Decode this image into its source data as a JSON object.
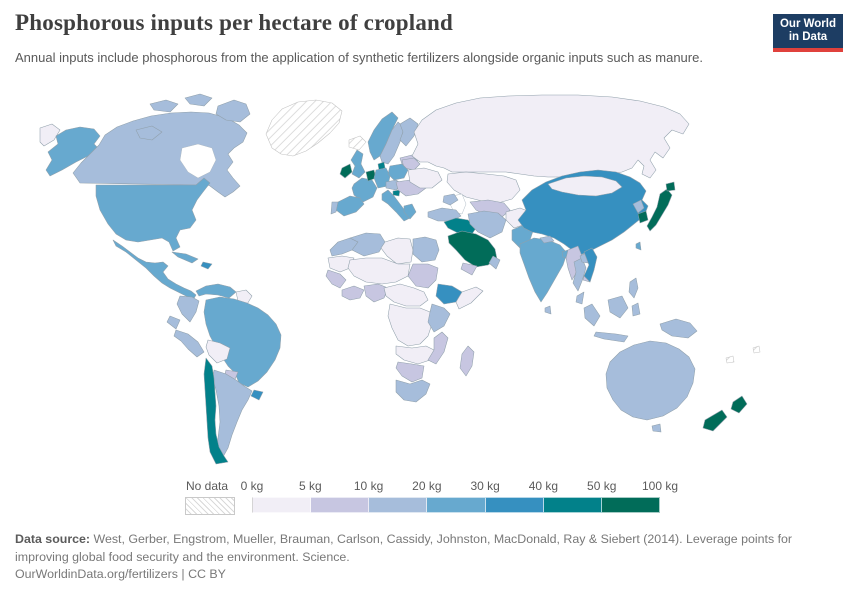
{
  "header": {
    "title": "Phosphorous inputs per hectare of cropland",
    "subtitle": "Annual inputs include phosphorous from the application of synthetic fertilizers alongside organic inputs such as manure.",
    "logo": {
      "line1": "Our World",
      "line2": "in Data",
      "bg_color": "#1d3d63",
      "accent_color": "#e0413c",
      "text_color": "#ffffff"
    }
  },
  "legend": {
    "no_data_label": "No data",
    "tick_labels": [
      "0 kg",
      "5 kg",
      "10 kg",
      "20 kg",
      "30 kg",
      "40 kg",
      "50 kg",
      "100 kg"
    ]
  },
  "footer": {
    "source_label": "Data source:",
    "source_text": " West, Gerber, Engstrom, Mueller, Brauman, Carlson, Cassidy, Johnston, MacDonald, Ray & Siebert (2014). Leverage points for improving global food security and the environment. Science.",
    "link_text": "OurWorldinData.org/fertilizers",
    "separator": " | ",
    "license_text": "CC BY"
  },
  "chart_data": {
    "type": "choropleth_world_map",
    "title": "Phosphorous inputs per hectare of cropland",
    "unit": "kg of phosphorous inputs per hectare of cropland per year",
    "legend_position": "bottom",
    "bins": [
      {
        "range": "0-5 kg",
        "color": "#f1eef6"
      },
      {
        "range": "5-10 kg",
        "color": "#c7c6e1"
      },
      {
        "range": "10-20 kg",
        "color": "#a6bddb"
      },
      {
        "range": "20-30 kg",
        "color": "#67a9cf"
      },
      {
        "range": "30-40 kg",
        "color": "#3690c0"
      },
      {
        "range": "40-50 kg",
        "color": "#02818a"
      },
      {
        "range": "50-100 kg",
        "color": "#016c59"
      },
      {
        "range": "No data",
        "color": "hatch"
      }
    ],
    "regions": [
      {
        "name": "Canada",
        "bin": "10-20 kg"
      },
      {
        "name": "United States",
        "bin": "20-30 kg"
      },
      {
        "name": "Greenland",
        "bin": "No data"
      },
      {
        "name": "Iceland",
        "bin": "No data"
      },
      {
        "name": "Mexico and Central America",
        "bin": "20-30 kg"
      },
      {
        "name": "Cuba",
        "bin": "20-30 kg"
      },
      {
        "name": "Hispaniola",
        "bin": "30-40 kg"
      },
      {
        "name": "Venezuela",
        "bin": "20-30 kg"
      },
      {
        "name": "Guyana and Suriname",
        "bin": "0-5 kg"
      },
      {
        "name": "Colombia",
        "bin": "10-20 kg"
      },
      {
        "name": "Ecuador",
        "bin": "10-20 kg"
      },
      {
        "name": "Peru",
        "bin": "10-20 kg"
      },
      {
        "name": "Brazil",
        "bin": "20-30 kg"
      },
      {
        "name": "Bolivia",
        "bin": "0-5 kg"
      },
      {
        "name": "Paraguay",
        "bin": "5-10 kg"
      },
      {
        "name": "Uruguay",
        "bin": "30-40 kg"
      },
      {
        "name": "Argentina",
        "bin": "10-20 kg"
      },
      {
        "name": "Chile",
        "bin": "40-50 kg"
      },
      {
        "name": "Norway",
        "bin": "20-30 kg"
      },
      {
        "name": "Sweden",
        "bin": "10-20 kg"
      },
      {
        "name": "Finland",
        "bin": "10-20 kg"
      },
      {
        "name": "Denmark",
        "bin": "40-50 kg"
      },
      {
        "name": "United Kingdom",
        "bin": "20-30 kg"
      },
      {
        "name": "Ireland",
        "bin": "50-100 kg"
      },
      {
        "name": "France",
        "bin": "20-30 kg"
      },
      {
        "name": "Belgium and Netherlands",
        "bin": "50-100 kg"
      },
      {
        "name": "Germany",
        "bin": "20-30 kg"
      },
      {
        "name": "Poland",
        "bin": "20-30 kg"
      },
      {
        "name": "Czechia and Austria",
        "bin": "10-20 kg"
      },
      {
        "name": "Spain",
        "bin": "20-30 kg"
      },
      {
        "name": "Portugal",
        "bin": "10-20 kg"
      },
      {
        "name": "Italy",
        "bin": "20-30 kg"
      },
      {
        "name": "Slovenia and Croatia",
        "bin": "40-50 kg"
      },
      {
        "name": "Romania and Balkans",
        "bin": "5-10 kg"
      },
      {
        "name": "Greece",
        "bin": "20-30 kg"
      },
      {
        "name": "Ukraine",
        "bin": "0-5 kg"
      },
      {
        "name": "Belarus and Baltics",
        "bin": "5-10 kg"
      },
      {
        "name": "Russia",
        "bin": "0-5 kg"
      },
      {
        "name": "Kazakhstan",
        "bin": "0-5 kg"
      },
      {
        "name": "Uzbekistan and Turkmenistan",
        "bin": "5-10 kg"
      },
      {
        "name": "Caucasus",
        "bin": "10-20 kg"
      },
      {
        "name": "Turkey",
        "bin": "10-20 kg"
      },
      {
        "name": "Syria and Iraq",
        "bin": "40-50 kg"
      },
      {
        "name": "Saudi Arabia",
        "bin": "50-100 kg"
      },
      {
        "name": "Yemen",
        "bin": "5-10 kg"
      },
      {
        "name": "Oman",
        "bin": "10-20 kg"
      },
      {
        "name": "Iran",
        "bin": "10-20 kg"
      },
      {
        "name": "Afghanistan",
        "bin": "0-5 kg"
      },
      {
        "name": "Pakistan",
        "bin": "20-30 kg"
      },
      {
        "name": "India",
        "bin": "20-30 kg"
      },
      {
        "name": "Sri Lanka",
        "bin": "10-20 kg"
      },
      {
        "name": "Nepal",
        "bin": "10-20 kg"
      },
      {
        "name": "Bangladesh",
        "bin": "20-30 kg"
      },
      {
        "name": "Myanmar",
        "bin": "5-10 kg"
      },
      {
        "name": "China",
        "bin": "30-40 kg"
      },
      {
        "name": "Mongolia",
        "bin": "0-5 kg"
      },
      {
        "name": "Taiwan",
        "bin": "20-30 kg"
      },
      {
        "name": "North Korea",
        "bin": "10-20 kg"
      },
      {
        "name": "South Korea",
        "bin": "50-100 kg"
      },
      {
        "name": "Japan",
        "bin": "50-100 kg"
      },
      {
        "name": "Vietnam",
        "bin": "30-40 kg"
      },
      {
        "name": "Laos",
        "bin": "10-20 kg"
      },
      {
        "name": "Thailand",
        "bin": "10-20 kg"
      },
      {
        "name": "Cambodia",
        "bin": "5-10 kg"
      },
      {
        "name": "Malaysia",
        "bin": "10-20 kg"
      },
      {
        "name": "Philippines",
        "bin": "10-20 kg"
      },
      {
        "name": "Indonesia",
        "bin": "10-20 kg"
      },
      {
        "name": "Papua New Guinea",
        "bin": "10-20 kg"
      },
      {
        "name": "Australia",
        "bin": "10-20 kg"
      },
      {
        "name": "New Zealand",
        "bin": "50-100 kg"
      },
      {
        "name": "Pacific islands",
        "bin": "No data"
      },
      {
        "name": "Morocco",
        "bin": "10-20 kg"
      },
      {
        "name": "Algeria",
        "bin": "10-20 kg"
      },
      {
        "name": "Libya",
        "bin": "0-5 kg"
      },
      {
        "name": "Egypt",
        "bin": "10-20 kg"
      },
      {
        "name": "Mauritania and Western Sahara",
        "bin": "0-5 kg"
      },
      {
        "name": "Mali, Niger and Chad",
        "bin": "0-5 kg"
      },
      {
        "name": "Senegal and Guinea",
        "bin": "5-10 kg"
      },
      {
        "name": "Cote d'Ivoire and Ghana",
        "bin": "5-10 kg"
      },
      {
        "name": "Nigeria",
        "bin": "5-10 kg"
      },
      {
        "name": "Sudan",
        "bin": "5-10 kg"
      },
      {
        "name": "Ethiopia",
        "bin": "30-40 kg"
      },
      {
        "name": "Somalia",
        "bin": "0-5 kg"
      },
      {
        "name": "Central African region",
        "bin": "0-5 kg"
      },
      {
        "name": "DR Congo",
        "bin": "0-5 kg"
      },
      {
        "name": "Kenya and Tanzania",
        "bin": "10-20 kg"
      },
      {
        "name": "Angola and Zambia",
        "bin": "0-5 kg"
      },
      {
        "name": "Zimbabwe and Mozambique",
        "bin": "5-10 kg"
      },
      {
        "name": "Namibia and Botswana",
        "bin": "5-10 kg"
      },
      {
        "name": "South Africa",
        "bin": "10-20 kg"
      },
      {
        "name": "Madagascar",
        "bin": "5-10 kg"
      }
    ]
  }
}
